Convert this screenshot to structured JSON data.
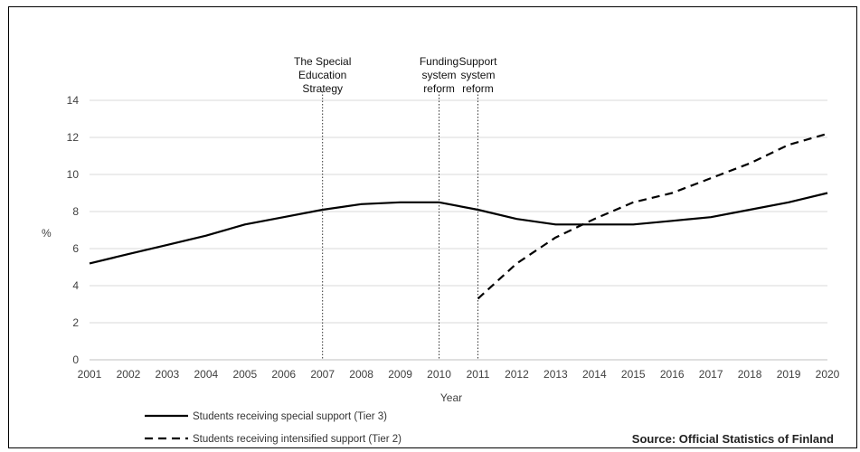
{
  "chart_data": {
    "type": "line",
    "xlabel": "Year",
    "ylabel": "%",
    "ylim": [
      0,
      14
    ],
    "yticks": [
      0,
      2,
      4,
      6,
      8,
      10,
      12,
      14
    ],
    "grid": "horizontal",
    "x": [
      "2001",
      "2002",
      "2003",
      "2004",
      "2005",
      "2006",
      "2007",
      "2008",
      "2009",
      "2010",
      "2011",
      "2012",
      "2013",
      "2014",
      "2015",
      "2016",
      "2017",
      "2018",
      "2019",
      "2020"
    ],
    "series": [
      {
        "name": "Students receiving special support (Tier 3)",
        "style": "solid",
        "color": "#000000",
        "values": [
          5.2,
          5.7,
          6.2,
          6.7,
          7.3,
          7.7,
          8.1,
          8.4,
          8.5,
          8.5,
          8.1,
          7.6,
          7.3,
          7.3,
          7.3,
          7.5,
          7.7,
          8.1,
          8.5,
          9.0
        ]
      },
      {
        "name": "Students receiving intensified support (Tier 2)",
        "style": "dashed",
        "color": "#000000",
        "values": [
          null,
          null,
          null,
          null,
          null,
          null,
          null,
          null,
          null,
          null,
          3.3,
          5.2,
          6.6,
          7.6,
          8.5,
          9.0,
          9.8,
          10.6,
          11.6,
          12.2
        ]
      }
    ],
    "annotations": [
      {
        "x": "2007",
        "lines": [
          "The Special",
          "Education",
          "Strategy"
        ]
      },
      {
        "x": "2010",
        "lines": [
          "Funding",
          "system",
          "reform"
        ]
      },
      {
        "x": "2011",
        "lines": [
          "Support",
          "system",
          "reform"
        ]
      }
    ],
    "source": "Source: Official Statistics of Finland",
    "legend_position": "bottom-left"
  }
}
